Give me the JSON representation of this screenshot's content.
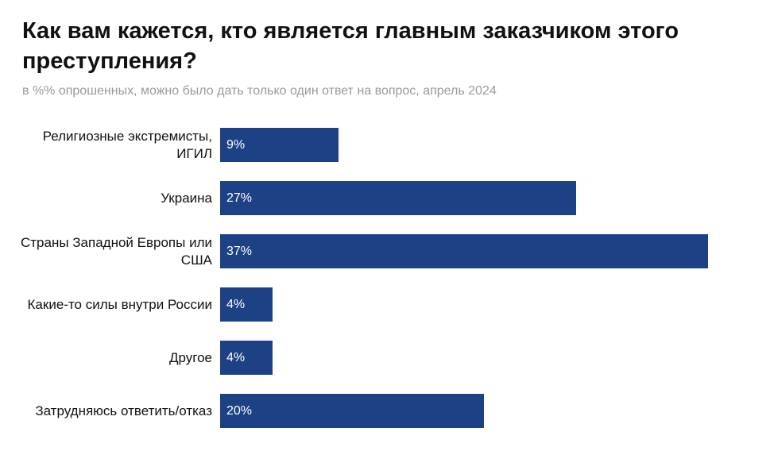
{
  "chart_data": {
    "type": "bar",
    "orientation": "horizontal",
    "title": "Как вам кажется, кто является главным заказчиком этого преступления?",
    "subtitle": "в %% опрошенных, можно было дать только один ответ на вопрос, апрель 2024",
    "categories": [
      "Религиозные экстремисты, ИГИЛ",
      "Украина",
      "Страны Западной Европы или США",
      "Какие-то силы внутри России",
      "Другое",
      "Затрудняюсь ответить/отказ"
    ],
    "values": [
      9,
      27,
      37,
      4,
      4,
      20
    ],
    "value_labels": [
      "9%",
      "27%",
      "37%",
      "4%",
      "4%",
      "20%"
    ],
    "color": "#1d4185"
  }
}
